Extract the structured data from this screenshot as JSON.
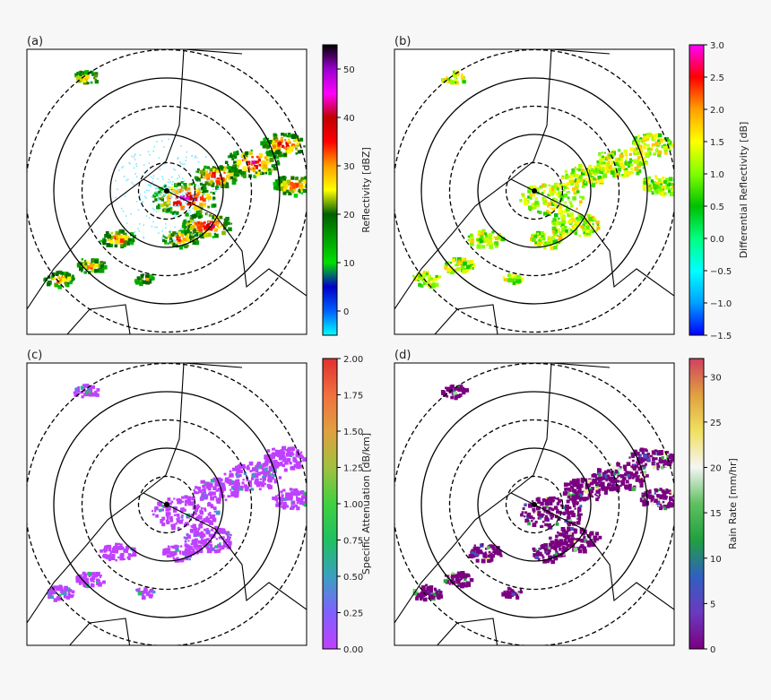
{
  "chart_data": [
    {
      "type": "heatmap",
      "panel_label": "(a)",
      "colorbar": {
        "label": "Reflectivity [dBZ]",
        "range": [
          -5,
          55
        ],
        "ticks": [
          "0",
          "10",
          "20",
          "30",
          "40",
          "50"
        ],
        "tick_values": [
          0,
          10,
          20,
          30,
          40,
          50
        ],
        "colormap": [
          "#00ffff",
          "#0060ff",
          "#0000c8",
          "#00e000",
          "#00a000",
          "#006000",
          "#ffff00",
          "#ffa000",
          "#ff0000",
          "#c00000",
          "#ff00ff",
          "#9900cc",
          "#000000"
        ]
      },
      "range_rings": [
        {
          "style": "dashed",
          "radius_rel": 0.25
        },
        {
          "style": "solid",
          "radius_rel": 0.5
        },
        {
          "style": "dashed",
          "radius_rel": 0.75
        },
        {
          "style": "solid",
          "radius_rel": 1.0
        },
        {
          "style": "dashed",
          "radius_rel": 1.25
        }
      ]
    },
    {
      "type": "heatmap",
      "panel_label": "(b)",
      "colorbar": {
        "label": "Differential Reflectivity [dB]",
        "range": [
          -1.5,
          3.0
        ],
        "ticks": [
          "−1.5",
          "−1.0",
          "−0.5",
          "0.0",
          "0.5",
          "1.0",
          "1.5",
          "2.0",
          "2.5",
          "3.0"
        ],
        "tick_values": [
          -1.5,
          -1.0,
          -0.5,
          0.0,
          0.5,
          1.0,
          1.5,
          2.0,
          2.5,
          3.0
        ],
        "colormap": [
          "#0000ff",
          "#00a0ff",
          "#00ffff",
          "#00ff80",
          "#00c000",
          "#80ff00",
          "#ffff00",
          "#ffa000",
          "#ff0000",
          "#ff00ff"
        ]
      },
      "range_rings": [
        {
          "style": "dashed",
          "radius_rel": 0.25
        },
        {
          "style": "solid",
          "radius_rel": 0.5
        },
        {
          "style": "dashed",
          "radius_rel": 0.75
        },
        {
          "style": "solid",
          "radius_rel": 1.0
        },
        {
          "style": "dashed",
          "radius_rel": 1.25
        }
      ]
    },
    {
      "type": "heatmap",
      "panel_label": "(c)",
      "colorbar": {
        "label": "Specific Attenuation [dB/km]",
        "range": [
          0.0,
          2.0
        ],
        "ticks": [
          "0.00",
          "0.25",
          "0.50",
          "0.75",
          "1.00",
          "1.25",
          "1.50",
          "1.75",
          "2.00"
        ],
        "tick_values": [
          0.0,
          0.25,
          0.5,
          0.75,
          1.0,
          1.25,
          1.5,
          1.75,
          2.0
        ],
        "colormap": [
          "#c040ff",
          "#8060ff",
          "#3aa0c0",
          "#20c060",
          "#40d040",
          "#a0c040",
          "#e0a040",
          "#f07040",
          "#e03030"
        ]
      },
      "range_rings": [
        {
          "style": "dashed",
          "radius_rel": 0.25
        },
        {
          "style": "solid",
          "radius_rel": 0.5
        },
        {
          "style": "dashed",
          "radius_rel": 0.75
        },
        {
          "style": "solid",
          "radius_rel": 1.0
        },
        {
          "style": "dashed",
          "radius_rel": 1.25
        }
      ]
    },
    {
      "type": "heatmap",
      "panel_label": "(d)",
      "colorbar": {
        "label": "Rain Rate [mm/hr]",
        "range": [
          0,
          32
        ],
        "ticks": [
          "0",
          "5",
          "10",
          "15",
          "20",
          "25",
          "30"
        ],
        "tick_values": [
          0,
          5,
          10,
          15,
          20,
          25,
          30
        ],
        "colormap": [
          "#7a0080",
          "#6a3ac0",
          "#3060c0",
          "#20a040",
          "#60c060",
          "#f5f5f5",
          "#f0e060",
          "#e0a040",
          "#d04060"
        ]
      },
      "range_rings": [
        {
          "style": "dashed",
          "radius_rel": 0.25
        },
        {
          "style": "solid",
          "radius_rel": 0.5
        },
        {
          "style": "dashed",
          "radius_rel": 0.75
        },
        {
          "style": "solid",
          "radius_rel": 1.0
        },
        {
          "style": "dashed",
          "radius_rel": 1.25
        }
      ]
    }
  ]
}
